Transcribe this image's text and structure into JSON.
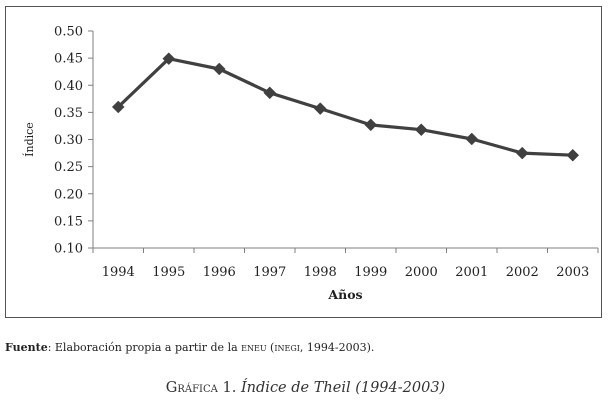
{
  "chart_data": {
    "type": "line",
    "xlabel": "Años",
    "ylabel": "Índice",
    "x": [
      "1994",
      "1995",
      "1996",
      "1997",
      "1998",
      "1999",
      "2000",
      "2001",
      "2002",
      "2003"
    ],
    "series": [
      {
        "values": [
          0.36,
          0.449,
          0.43,
          0.386,
          0.357,
          0.327,
          0.318,
          0.301,
          0.275,
          0.271
        ]
      }
    ],
    "ylim": [
      0.1,
      0.5
    ],
    "yticks": [
      "0.10",
      "0.15",
      "0.20",
      "0.25",
      "0.30",
      "0.35",
      "0.40",
      "0.45",
      "0.50"
    ],
    "grid": false,
    "legend": "none",
    "line_color": "#404040",
    "marker": "diamond"
  },
  "source": {
    "label": "Fuente",
    "text_before": ": Elaboración propia a partir de la ",
    "eneu": "eneu",
    "text_mid": " (",
    "inegi": "inegi",
    "text_after": ", 1994-2003)."
  },
  "caption": {
    "prefix": "Gráfica",
    "number": " 1. ",
    "title": "Índice de Theil (1994-2003)"
  }
}
